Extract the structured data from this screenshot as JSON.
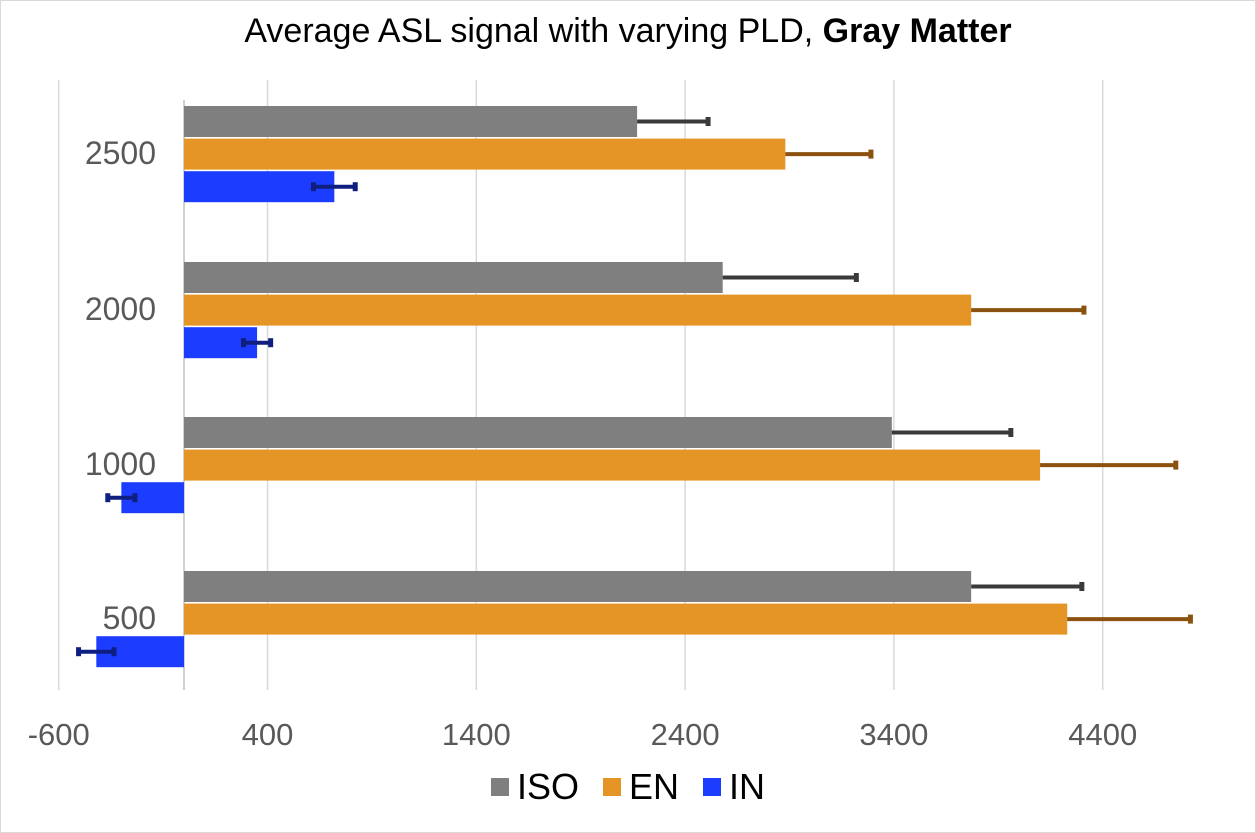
{
  "chart_data": {
    "type": "bar",
    "orientation": "horizontal",
    "title": "Average ASL signal with varying PLD, ",
    "title_bold": "Gray Matter",
    "xlabel": "",
    "ylabel": "",
    "xlim": [
      -600,
      4800
    ],
    "xticks": [
      "-600",
      "400",
      "1400",
      "2400",
      "3400",
      "4400"
    ],
    "xtick_values": [
      -600,
      400,
      1400,
      2400,
      3400,
      4400
    ],
    "categories": [
      "2500",
      "2000",
      "1000",
      "500"
    ],
    "grid": true,
    "legend_position": "bottom",
    "series": [
      {
        "name": "ISO",
        "color": "#7f7f7f",
        "error_color": "#3a3a3a",
        "values": [
          2170,
          2580,
          3390,
          3770
        ],
        "error": [
          340,
          640,
          570,
          530
        ]
      },
      {
        "name": "EN",
        "color": "#e59426",
        "error_color": "#8a520e",
        "values": [
          2880,
          3770,
          4100,
          4230
        ],
        "error": [
          410,
          540,
          650,
          590
        ]
      },
      {
        "name": "IN",
        "color": "#1c3dff",
        "error_color": "#0f1f80",
        "values": [
          720,
          350,
          -300,
          -420
        ],
        "error": [
          100,
          65,
          65,
          85
        ]
      }
    ]
  }
}
